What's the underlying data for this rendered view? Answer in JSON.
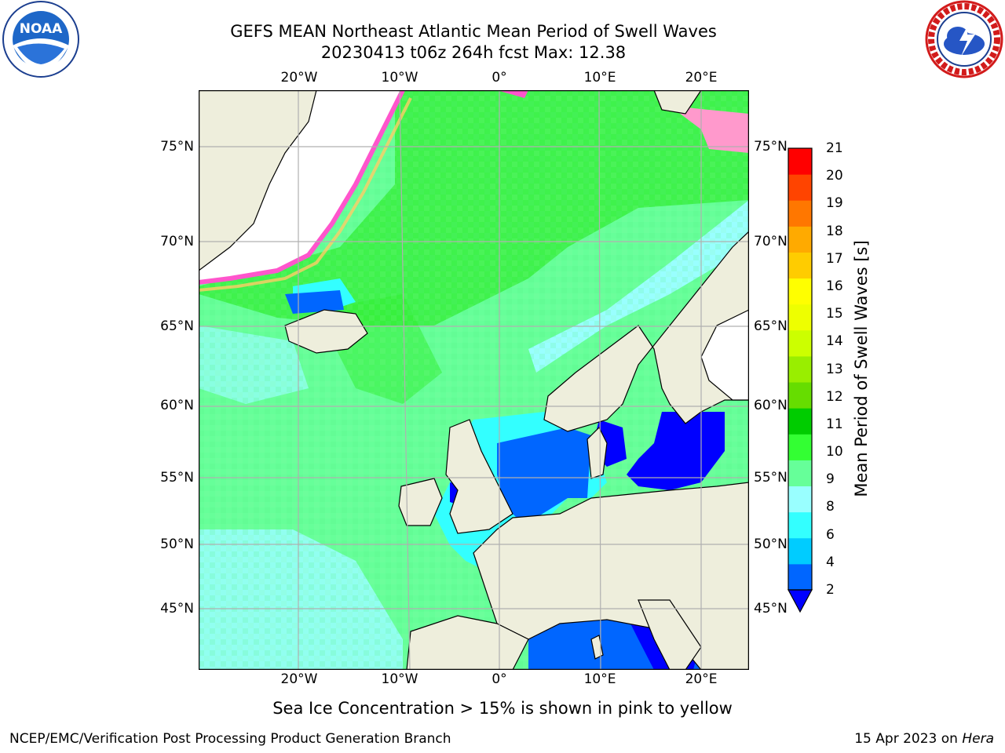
{
  "header": {
    "title_line1": "GEFS MEAN Northeast Atlantic Mean Period of Swell Waves",
    "title_line2": "20230413 t06z 264h fcst   Max: 12.38"
  },
  "logos": {
    "left": {
      "name": "NOAA",
      "ring_text": "NATIONAL OCEANIC AND ATMOSPHERIC ADMINISTRATION · U.S. DEPARTMENT OF COMMERCE"
    },
    "right": {
      "ring_text": "NATIONAL WEATHER SERVICE"
    }
  },
  "map": {
    "lon_labels": [
      "20°W",
      "10°W",
      "0°",
      "10°E",
      "20°E"
    ],
    "lat_labels": [
      "75°N",
      "70°N",
      "65°N",
      "60°N",
      "55°N",
      "50°N",
      "45°N"
    ],
    "colors": {
      "land": "#eeeedc",
      "ice_free_white": "#ffffff",
      "grid": "#b0b0b0"
    }
  },
  "colorbar": {
    "label": "Mean Period of Swell Waves [s]",
    "ticks": [
      "2",
      "4",
      "6",
      "8",
      "9",
      "10",
      "11",
      "12",
      "13",
      "14",
      "15",
      "16",
      "17",
      "18",
      "19",
      "20",
      "21"
    ],
    "colors": [
      "#0066ff",
      "#00ccff",
      "#33ffff",
      "#99ffff",
      "#66ff99",
      "#33ff33",
      "#00cc00",
      "#66dd00",
      "#99ee00",
      "#ccff00",
      "#eeff00",
      "#ffff00",
      "#ffcc00",
      "#ffaa00",
      "#ff7700",
      "#ff4400",
      "#ff0000"
    ],
    "under_color": "#0000ff"
  },
  "notes": {
    "ice": "Sea Ice Concentration > 15% is shown in pink to yellow"
  },
  "footer": {
    "left": "NCEP/EMC/Verification Post Processing Product Generation Branch",
    "right_date": "15 Apr 2023 on ",
    "right_host": "Hera"
  }
}
